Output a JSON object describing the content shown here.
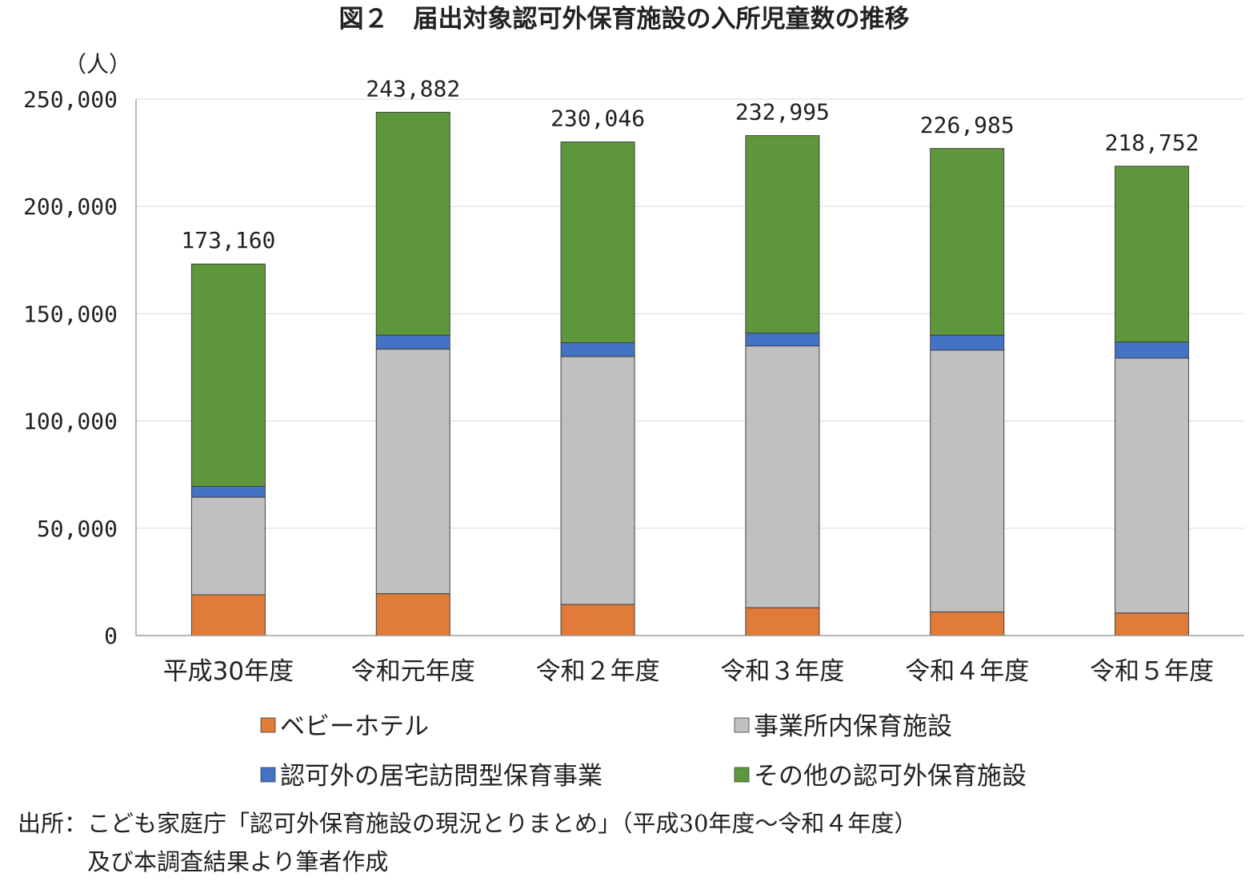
{
  "chart_data": {
    "type": "bar",
    "stacked": true,
    "title": "図２　届出対象認可外保育施設の入所児童数の推移",
    "unit_label": "（人）",
    "categories": [
      "平成30年度",
      "令和元年度",
      "令和２年度",
      "令和３年度",
      "令和４年度",
      "令和５年度"
    ],
    "ylim": [
      0,
      250000
    ],
    "yticks": [
      0,
      50000,
      100000,
      150000,
      200000,
      250000
    ],
    "ytick_labels": [
      "0",
      "50,000",
      "100,000",
      "150,000",
      "200,000",
      "250,000"
    ],
    "grid": true,
    "legend_position": "bottom",
    "series": [
      {
        "name": "ベビーホテル",
        "color": "#e07b39",
        "values": [
          19000,
          19500,
          14500,
          13000,
          11000,
          10500
        ]
      },
      {
        "name": "事業所内保育施設",
        "color": "#c0c0c0",
        "values": [
          45500,
          114000,
          115500,
          122000,
          122000,
          118800
        ]
      },
      {
        "name": "認可外の居宅訪問型保育事業",
        "color": "#4472c4",
        "values": [
          5000,
          6500,
          6500,
          6000,
          7000,
          7500
        ]
      },
      {
        "name": "その他の認可外保育施設",
        "color": "#5e963c",
        "values": [
          103660,
          103882,
          93546,
          91995,
          86985,
          81952
        ]
      }
    ],
    "totals": [
      173160,
      243882,
      230046,
      232995,
      226985,
      218752
    ],
    "total_labels": [
      "173,160",
      "243,882",
      "230,046",
      "232,995",
      "226,985",
      "218,752"
    ]
  },
  "source_lines": [
    "出所：こども家庭庁「認可外保育施設の現況とりまとめ」（平成30年度～令和４年度）",
    "　　　及び本調査結果より筆者作成"
  ]
}
